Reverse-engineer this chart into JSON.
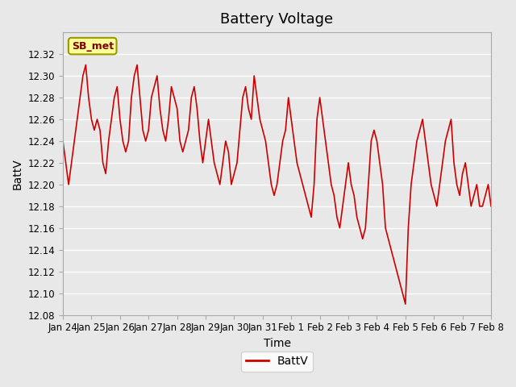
{
  "title": "Battery Voltage",
  "xlabel": "Time",
  "ylabel": "BattV",
  "legend_label": "BattV",
  "line_color": "#cc0000",
  "background_color": "#e8e8e8",
  "plot_bg_color": "#e8e8e8",
  "ylim": [
    12.08,
    12.34
  ],
  "yticks": [
    12.08,
    12.1,
    12.12,
    12.14,
    12.16,
    12.18,
    12.2,
    12.22,
    12.24,
    12.26,
    12.28,
    12.3,
    12.32
  ],
  "xtick_labels": [
    "Jan 24",
    "Jan 25",
    "Jan 26",
    "Jan 27",
    "Jan 28",
    "Jan 29",
    "Jan 30",
    "Jan 31",
    "Feb 1",
    "Feb 2",
    "Feb 3",
    "Feb 4",
    "Feb 5",
    "Feb 6",
    "Feb 7",
    "Feb 8"
  ],
  "annotation_text": "SB_met",
  "annotation_bg": "#ffff99",
  "annotation_border": "#999900",
  "x_values": [
    0,
    0.1,
    0.2,
    0.3,
    0.4,
    0.5,
    0.6,
    0.7,
    0.8,
    0.9,
    1.0,
    1.1,
    1.2,
    1.3,
    1.4,
    1.5,
    1.6,
    1.7,
    1.8,
    1.9,
    2.0,
    2.1,
    2.2,
    2.3,
    2.4,
    2.5,
    2.6,
    2.7,
    2.8,
    2.9,
    3.0,
    3.1,
    3.2,
    3.3,
    3.4,
    3.5,
    3.6,
    3.7,
    3.8,
    3.9,
    4.0,
    4.1,
    4.2,
    4.3,
    4.4,
    4.5,
    4.6,
    4.7,
    4.8,
    4.9,
    5.0,
    5.1,
    5.2,
    5.3,
    5.4,
    5.5,
    5.6,
    5.7,
    5.8,
    5.9,
    6.0,
    6.1,
    6.2,
    6.3,
    6.4,
    6.5,
    6.6,
    6.7,
    6.8,
    6.9,
    7.0,
    7.1,
    7.2,
    7.3,
    7.4,
    7.5,
    7.6,
    7.7,
    7.8,
    7.9,
    8.0,
    8.1,
    8.2,
    8.3,
    8.4,
    8.5,
    8.6,
    8.7,
    8.8,
    8.9,
    9.0,
    9.1,
    9.2,
    9.3,
    9.4,
    9.5,
    9.6,
    9.7,
    9.8,
    9.9,
    10.0,
    10.1,
    10.2,
    10.3,
    10.4,
    10.5,
    10.6,
    10.7,
    10.8,
    10.9,
    11.0,
    11.1,
    11.2,
    11.3,
    11.4,
    11.5,
    11.6,
    11.7,
    11.8,
    11.9,
    12.0,
    12.1,
    12.2,
    12.3,
    12.4,
    12.5,
    12.6,
    12.7,
    12.8,
    12.9,
    13.0,
    13.1,
    13.2,
    13.3,
    13.4,
    13.5,
    13.6,
    13.7,
    13.8,
    13.9,
    14.0,
    14.1,
    14.2,
    14.3,
    14.4,
    14.5,
    14.6,
    14.7,
    14.8,
    14.9,
    15.0
  ],
  "y_values": [
    12.24,
    12.22,
    12.2,
    12.22,
    12.24,
    12.26,
    12.28,
    12.3,
    12.31,
    12.28,
    12.26,
    12.25,
    12.26,
    12.25,
    12.22,
    12.21,
    12.24,
    12.26,
    12.28,
    12.29,
    12.26,
    12.24,
    12.23,
    12.24,
    12.28,
    12.3,
    12.31,
    12.28,
    12.25,
    12.24,
    12.25,
    12.28,
    12.29,
    12.3,
    12.27,
    12.25,
    12.24,
    12.26,
    12.29,
    12.28,
    12.27,
    12.24,
    12.23,
    12.24,
    12.25,
    12.28,
    12.29,
    12.27,
    12.24,
    12.22,
    12.24,
    12.26,
    12.24,
    12.22,
    12.21,
    12.2,
    12.22,
    12.24,
    12.23,
    12.2,
    12.21,
    12.22,
    12.25,
    12.28,
    12.29,
    12.27,
    12.26,
    12.3,
    12.28,
    12.26,
    12.25,
    12.24,
    12.22,
    12.2,
    12.19,
    12.2,
    12.22,
    12.24,
    12.25,
    12.28,
    12.26,
    12.24,
    12.22,
    12.21,
    12.2,
    12.19,
    12.18,
    12.17,
    12.2,
    12.26,
    12.28,
    12.26,
    12.24,
    12.22,
    12.2,
    12.19,
    12.17,
    12.16,
    12.18,
    12.2,
    12.22,
    12.2,
    12.19,
    12.17,
    12.16,
    12.15,
    12.16,
    12.2,
    12.24,
    12.25,
    12.24,
    12.22,
    12.2,
    12.16,
    12.15,
    12.14,
    12.13,
    12.12,
    12.11,
    12.1,
    12.09,
    12.16,
    12.2,
    12.22,
    12.24,
    12.25,
    12.26,
    12.24,
    12.22,
    12.2,
    12.19,
    12.18,
    12.2,
    12.22,
    12.24,
    12.25,
    12.26,
    12.22,
    12.2,
    12.19,
    12.21,
    12.22,
    12.2,
    12.18,
    12.19,
    12.2,
    12.18,
    12.18,
    12.19,
    12.2,
    12.18
  ]
}
